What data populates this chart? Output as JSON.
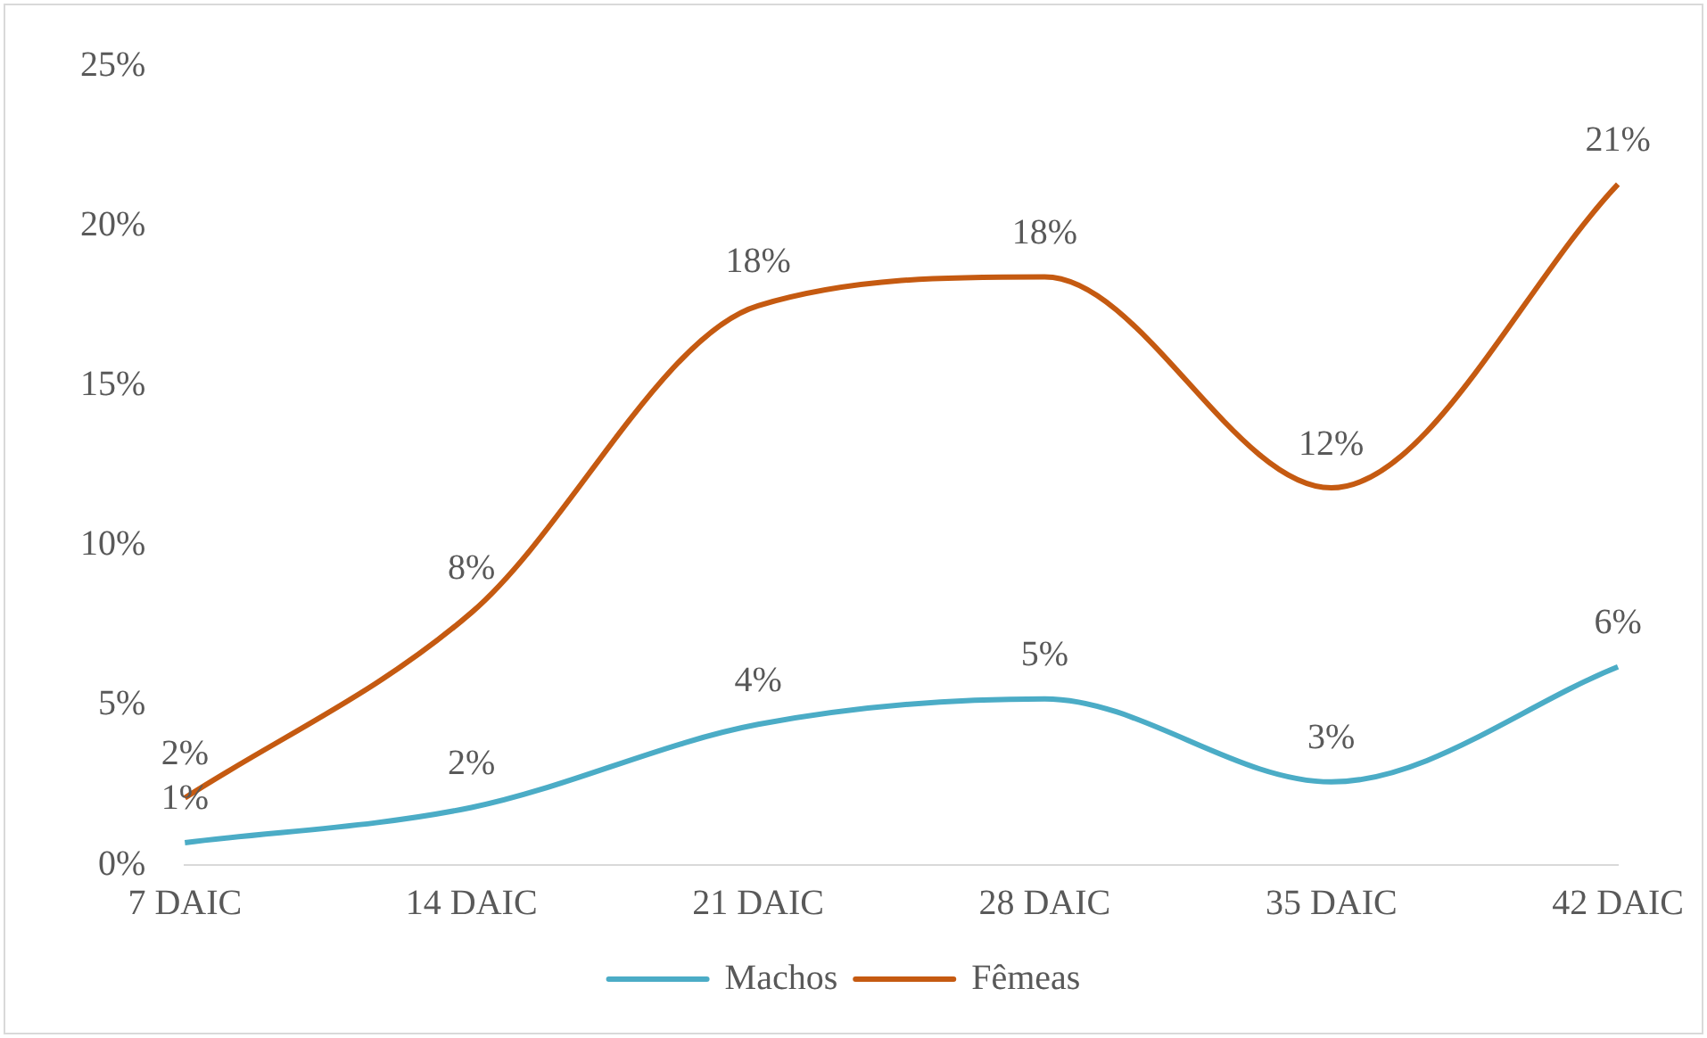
{
  "chart_data": {
    "type": "line",
    "categories": [
      "7 DAIC",
      "14 DAIC",
      "21 DAIC",
      "28 DAIC",
      "35 DAIC",
      "42 DAIC"
    ],
    "series": [
      {
        "name": "Machos",
        "color": "#4bacc6",
        "values": [
          0.7,
          1.8,
          4.4,
          5.2,
          2.6,
          6.2
        ],
        "value_labels": [
          "1%",
          "2%",
          "4%",
          "5%",
          "3%",
          "6%"
        ]
      },
      {
        "name": "Fêmeas",
        "color": "#c55a11",
        "values": [
          2.1,
          7.9,
          17.5,
          18.4,
          11.8,
          21.3
        ],
        "value_labels": [
          "2%",
          "8%",
          "18%",
          "18%",
          "12%",
          "21%"
        ]
      }
    ],
    "ylim": [
      0,
      25
    ],
    "yticks": [
      {
        "value": 0,
        "label": "0%"
      },
      {
        "value": 5,
        "label": "5%"
      },
      {
        "value": 10,
        "label": "10%"
      },
      {
        "value": 15,
        "label": "15%"
      },
      {
        "value": 20,
        "label": "20%"
      },
      {
        "value": 25,
        "label": "25%"
      }
    ],
    "grid": false,
    "legend": "bottom",
    "marker": "none",
    "line_style": "solid"
  }
}
